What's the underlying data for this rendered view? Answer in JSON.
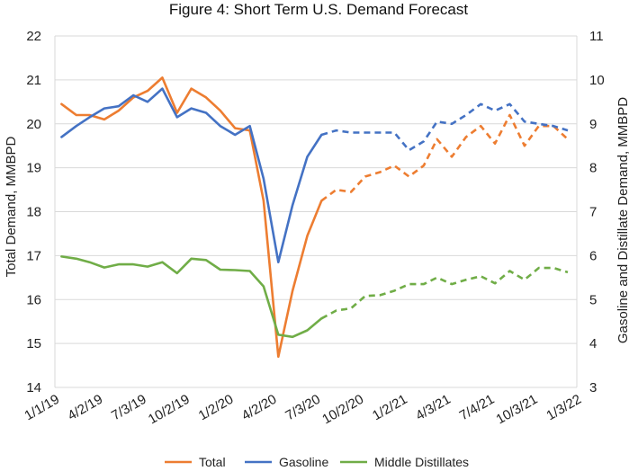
{
  "chart_data": {
    "type": "line",
    "title": "Figure 4: Short Term U.S. Demand Forecast",
    "ylabel": "Total Demand, MMBPD",
    "y2label": "Gasoline and Distillate Demand, MMBPD",
    "xlabel": "",
    "ylim": [
      14,
      22
    ],
    "y2lim": [
      3,
      11
    ],
    "yticks": [
      14,
      15,
      16,
      17,
      18,
      19,
      20,
      21,
      22
    ],
    "y2ticks": [
      3,
      4,
      5,
      6,
      7,
      8,
      9,
      10,
      11
    ],
    "xlim": [
      "2019-01-01",
      "2022-01-03"
    ],
    "xticks": [
      "2019-01-01",
      "2019-04-02",
      "2019-07-03",
      "2019-10-02",
      "2020-01-02",
      "2020-04-02",
      "2020-07-03",
      "2020-10-02",
      "2021-01-02",
      "2021-04-03",
      "2021-07-04",
      "2021-10-03",
      "2022-01-03"
    ],
    "xtick_labels": [
      "1/1/19",
      "4/2/19",
      "7/3/19",
      "10/2/19",
      "1/2/20",
      "4/2/20",
      "7/3/20",
      "10/2/20",
      "1/2/21",
      "4/3/21",
      "7/4/21",
      "10/3/21",
      "1/3/22"
    ],
    "grid": "horizontal",
    "legend": "bottom",
    "series": [
      {
        "name": "Total",
        "axis": "left",
        "color": "#ED7D31",
        "x": [
          "2019-01-15",
          "2019-02-15",
          "2019-03-15",
          "2019-04-15",
          "2019-05-15",
          "2019-06-15",
          "2019-07-15",
          "2019-08-15",
          "2019-09-15",
          "2019-10-15",
          "2019-11-15",
          "2019-12-15",
          "2020-01-15",
          "2020-02-15",
          "2020-03-15",
          "2020-04-15",
          "2020-05-15",
          "2020-06-15",
          "2020-07-15",
          "2020-08-15",
          "2020-09-15",
          "2020-10-15",
          "2020-11-15",
          "2020-12-15",
          "2021-01-15",
          "2021-02-15",
          "2021-03-15",
          "2021-04-15",
          "2021-05-15",
          "2021-06-15",
          "2021-07-15",
          "2021-08-15",
          "2021-09-15",
          "2021-10-15",
          "2021-11-15",
          "2021-12-15"
        ],
        "y": [
          20.45,
          20.2,
          20.2,
          20.1,
          20.3,
          20.6,
          20.75,
          21.05,
          20.25,
          20.8,
          20.6,
          20.3,
          19.9,
          19.85,
          18.25,
          14.7,
          16.2,
          17.45,
          18.25,
          18.5,
          18.45,
          18.8,
          18.9,
          19.05,
          18.8,
          19.05,
          19.65,
          19.25,
          19.7,
          19.95,
          19.55,
          20.2,
          19.5,
          19.95,
          19.95,
          19.65
        ],
        "actual_through": "2020-07-15"
      },
      {
        "name": "Gasoline",
        "axis": "right",
        "color": "#4472C4",
        "x": [
          "2019-01-15",
          "2019-02-15",
          "2019-03-15",
          "2019-04-15",
          "2019-05-15",
          "2019-06-15",
          "2019-07-15",
          "2019-08-15",
          "2019-09-15",
          "2019-10-15",
          "2019-11-15",
          "2019-12-15",
          "2020-01-15",
          "2020-02-15",
          "2020-03-15",
          "2020-04-15",
          "2020-05-15",
          "2020-06-15",
          "2020-07-15",
          "2020-08-15",
          "2020-09-15",
          "2020-10-15",
          "2020-11-15",
          "2020-12-15",
          "2021-01-15",
          "2021-02-15",
          "2021-03-15",
          "2021-04-15",
          "2021-05-15",
          "2021-06-15",
          "2021-07-15",
          "2021-08-15",
          "2021-09-15",
          "2021-10-15",
          "2021-11-15",
          "2021-12-15"
        ],
        "y": [
          8.7,
          8.95,
          9.15,
          9.35,
          9.4,
          9.65,
          9.5,
          9.8,
          9.15,
          9.35,
          9.25,
          8.95,
          8.75,
          8.95,
          7.75,
          5.85,
          7.15,
          8.25,
          8.75,
          8.85,
          8.8,
          8.8,
          8.8,
          8.8,
          8.4,
          8.6,
          9.05,
          9.0,
          9.2,
          9.45,
          9.3,
          9.45,
          9.05,
          9.0,
          8.95,
          8.85
        ],
        "actual_through": "2020-07-15"
      },
      {
        "name": "Middle Distillates",
        "axis": "right",
        "color": "#70AD47",
        "x": [
          "2019-01-15",
          "2019-02-15",
          "2019-03-15",
          "2019-04-15",
          "2019-05-15",
          "2019-06-15",
          "2019-07-15",
          "2019-08-15",
          "2019-09-15",
          "2019-10-15",
          "2019-11-15",
          "2019-12-15",
          "2020-01-15",
          "2020-02-15",
          "2020-03-15",
          "2020-04-15",
          "2020-05-15",
          "2020-06-15",
          "2020-07-15",
          "2020-08-15",
          "2020-09-15",
          "2020-10-15",
          "2020-11-15",
          "2020-12-15",
          "2021-01-15",
          "2021-02-15",
          "2021-03-15",
          "2021-04-15",
          "2021-05-15",
          "2021-06-15",
          "2021-07-15",
          "2021-08-15",
          "2021-09-15",
          "2021-10-15",
          "2021-11-15",
          "2021-12-15"
        ],
        "y": [
          5.98,
          5.93,
          5.85,
          5.73,
          5.8,
          5.8,
          5.75,
          5.85,
          5.6,
          5.93,
          5.9,
          5.68,
          5.67,
          5.65,
          5.3,
          4.2,
          4.15,
          4.3,
          4.57,
          4.75,
          4.8,
          5.08,
          5.1,
          5.2,
          5.35,
          5.35,
          5.5,
          5.35,
          5.45,
          5.53,
          5.37,
          5.65,
          5.45,
          5.72,
          5.72,
          5.62
        ],
        "actual_through": "2020-07-15"
      }
    ]
  }
}
